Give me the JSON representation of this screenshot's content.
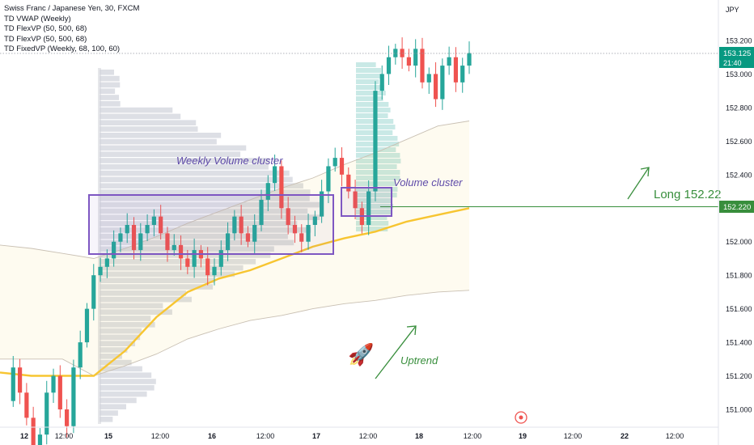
{
  "legend": {
    "title": "Swiss Franc / Japanese Yen, 30, FXCM",
    "indicators": [
      "TD VWAP (Weekly)",
      "TD FlexVP (50, 500, 68)",
      "TD FlexVP (50, 500, 68)",
      "TD FixedVP (Weekly, 68, 100, 60)"
    ]
  },
  "price_axis": {
    "currency": "JPY",
    "ticks": [
      "153.200",
      "153.000",
      "152.800",
      "152.600",
      "152.400",
      "152.200",
      "152.000",
      "151.800",
      "151.600",
      "151.400",
      "151.200",
      "151.000"
    ],
    "current_price": "153.125",
    "countdown": "21:40",
    "level_label": "152.220"
  },
  "time_axis": {
    "ticks": [
      "12",
      "12:00",
      "15",
      "12:00",
      "16",
      "12:00",
      "17",
      "12:00",
      "18",
      "12:00",
      "19",
      "12:00",
      "22",
      "12:00"
    ]
  },
  "annotations": {
    "weekly_cluster": "Weekly Volume cluster",
    "volume_cluster": "Volume cluster",
    "uptrend": "Uptrend",
    "long": "Long 152.22",
    "rocket": "🚀"
  },
  "colors": {
    "up_candle": "#26a69a",
    "down_candle": "#ef5350",
    "vwap": "#f7c531",
    "box": "#7e57c2",
    "green_line": "#388e3c",
    "price_tag": "#089981",
    "volume_profile": "#d1d4dc",
    "volume_profile_recent": "#b2dfdb"
  },
  "chart_data": {
    "type": "candlestick",
    "price_range": [
      150.9,
      153.3
    ],
    "long_level": 152.22,
    "current_price": 153.125,
    "weekly_cluster_range": [
      151.93,
      152.26
    ],
    "volume_cluster_range": [
      152.17,
      152.31
    ],
    "vwap_path": [
      151.22,
      151.2,
      151.2,
      151.2,
      151.35,
      151.55,
      151.7,
      151.78,
      151.83,
      151.9,
      151.97,
      152.02,
      152.06,
      152.12,
      152.16,
      152.2
    ],
    "upper_band_path": [
      151.98,
      151.96,
      151.93,
      151.9,
      151.96,
      152.03,
      152.11,
      152.18,
      152.25,
      152.32,
      152.38,
      152.46,
      152.53,
      152.61,
      152.69,
      152.72
    ],
    "lower_band_path": [
      151.3,
      151.3,
      151.3,
      151.2,
      151.26,
      151.33,
      151.42,
      151.48,
      151.53,
      151.56,
      151.6,
      151.63,
      151.65,
      151.68,
      151.7,
      151.71
    ],
    "closes": [
      151.05,
      151.25,
      151.1,
      150.95,
      150.75,
      150.85,
      151.1,
      151.2,
      151.0,
      150.9,
      151.25,
      151.4,
      151.6,
      151.8,
      151.85,
      151.9,
      152.0,
      152.05,
      152.1,
      151.95,
      152.05,
      152.1,
      152.15,
      152.05,
      151.95,
      151.98,
      151.9,
      151.85,
      151.95,
      151.9,
      151.8,
      151.85,
      151.95,
      152.05,
      152.15,
      152.05,
      152.0,
      152.1,
      152.25,
      152.35,
      152.45,
      152.2,
      152.1,
      152.05,
      152.0,
      152.1,
      152.15,
      152.3,
      152.45,
      152.5,
      152.4,
      152.3,
      152.2,
      152.1,
      152.3,
      152.9,
      153.0,
      153.1,
      153.15,
      153.1,
      153.05,
      153.15,
      152.95,
      153.0,
      152.85,
      153.05,
      153.1,
      152.95,
      153.05,
      153.125
    ]
  }
}
